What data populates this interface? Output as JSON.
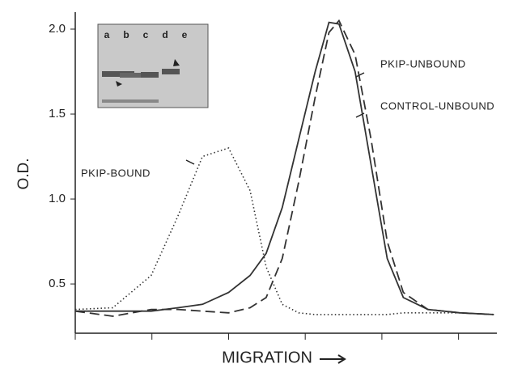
{
  "chart_data": {
    "type": "line",
    "y_label": "O.D.",
    "x_label": "MIGRATION",
    "annotations": [
      "PKIP-UNBOUND",
      "CONTROL-UNBOUND",
      "PKIP-BOUND"
    ],
    "inset_lanes": [
      "a",
      "b",
      "c",
      "d",
      "e"
    ],
    "x": [
      0,
      0.49,
      0.99,
      1.34,
      1.66,
      2.0,
      2.28,
      2.49,
      2.7,
      2.915,
      3.13,
      3.31,
      3.44,
      3.65,
      3.86,
      4.07,
      4.28,
      4.6,
      5.02,
      5.46
    ],
    "series": [
      {
        "name": "PKIP-UNBOUND",
        "color": "#333333",
        "dash": "solid",
        "values": [
          0.34,
          0.34,
          0.34,
          0.36,
          0.38,
          0.45,
          0.55,
          0.68,
          0.95,
          1.35,
          1.75,
          2.04,
          2.03,
          1.75,
          1.2,
          0.65,
          0.42,
          0.35,
          0.33,
          0.32
        ]
      },
      {
        "name": "CONTROL-UNBOUND",
        "color": "#333333",
        "dash": "dashed",
        "values": [
          0.34,
          0.31,
          0.35,
          0.35,
          0.34,
          0.33,
          0.36,
          0.42,
          0.65,
          1.1,
          1.6,
          1.98,
          2.05,
          1.85,
          1.35,
          0.75,
          0.45,
          0.35,
          0.33,
          0.32
        ]
      },
      {
        "name": "PKIP-BOUND",
        "color": "#333333",
        "dash": "dotted",
        "values": [
          0.35,
          0.36,
          0.55,
          0.9,
          1.25,
          1.3,
          1.05,
          0.6,
          0.38,
          0.33,
          0.32,
          0.32,
          0.32,
          0.32,
          0.32,
          0.32,
          0.33,
          0.33,
          0.33,
          0.32
        ]
      }
    ],
    "xlim": [
      0,
      5.5
    ],
    "xticks": [
      0,
      1,
      2,
      3,
      4,
      5
    ],
    "ylim": [
      0.21,
      2.1
    ],
    "yticks": [
      0.5,
      {
        "value": 1,
        "label": "1.0"
      },
      1.5,
      {
        "value": 2,
        "label": "2.0"
      }
    ]
  }
}
